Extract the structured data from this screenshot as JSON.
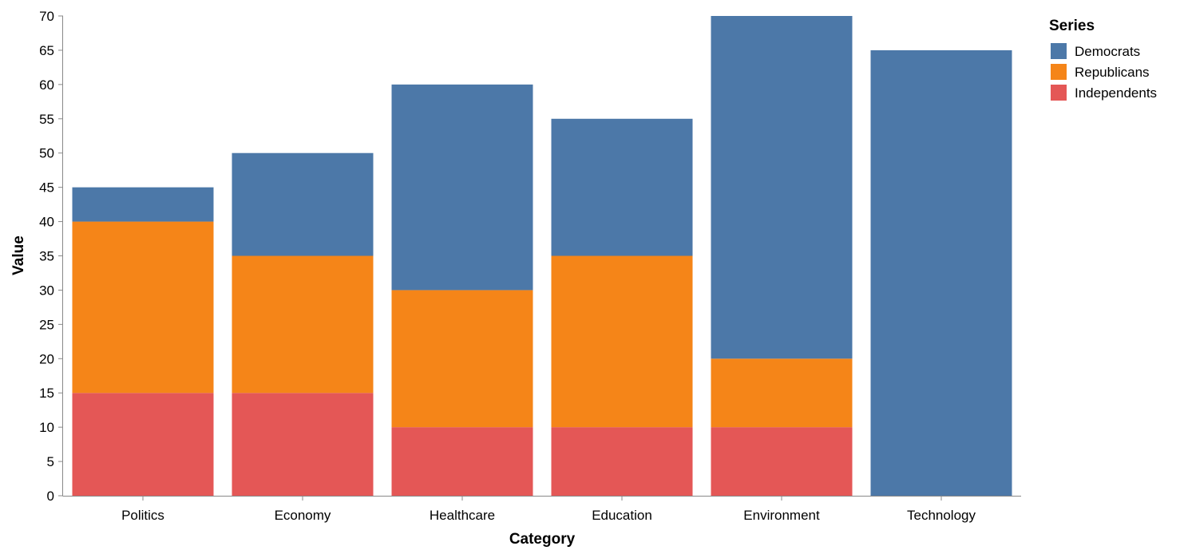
{
  "chart_data": {
    "type": "bar",
    "stacked": true,
    "title": "",
    "xlabel": "Category",
    "ylabel": "Value",
    "ylim": [
      0,
      70
    ],
    "yticks": [
      0,
      5,
      10,
      15,
      20,
      25,
      30,
      35,
      40,
      45,
      50,
      55,
      60,
      65,
      70
    ],
    "grid": false,
    "legend": {
      "title": "Series",
      "placement": "right"
    },
    "categories": [
      "Politics",
      "Economy",
      "Healthcare",
      "Education",
      "Environment",
      "Technology"
    ],
    "series": [
      {
        "name": "Independents",
        "color": "#e45756",
        "values": [
          15,
          15,
          10,
          10,
          10,
          0
        ]
      },
      {
        "name": "Republicans",
        "color": "#f58518",
        "values": [
          25,
          20,
          20,
          25,
          10,
          0
        ]
      },
      {
        "name": "Democrats",
        "color": "#4c78a8",
        "values": [
          5,
          15,
          30,
          20,
          50,
          65
        ]
      }
    ],
    "legend_order": [
      "Democrats",
      "Republicans",
      "Independents"
    ]
  },
  "colors": {
    "axis": "#888888",
    "text": "#000000"
  }
}
